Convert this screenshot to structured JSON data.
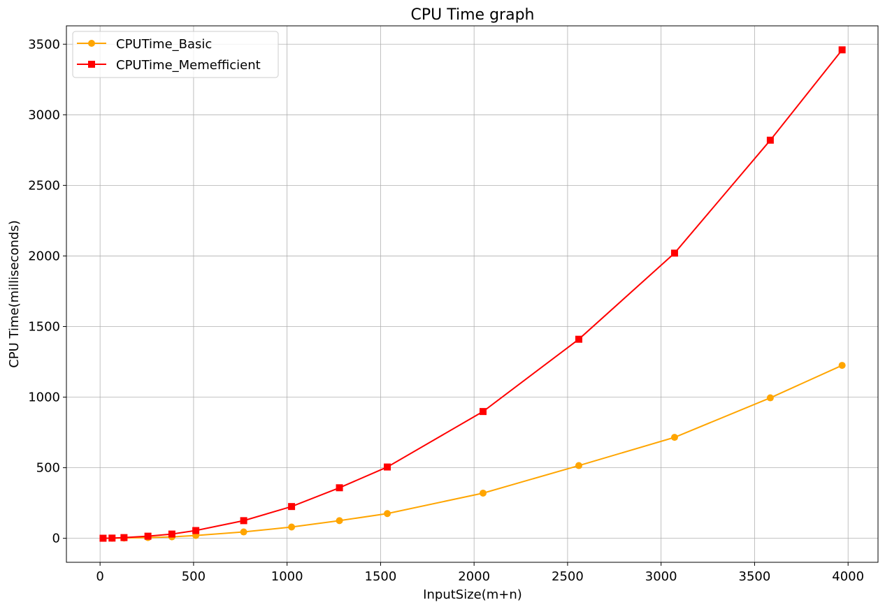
{
  "chart_data": {
    "type": "line",
    "title": "CPU Time graph",
    "xlabel": "InputSize(m+n)",
    "ylabel": "CPU Time(milliseconds)",
    "xlim": [
      -180,
      4160
    ],
    "ylim": [
      -170,
      3630
    ],
    "xticks": [
      0,
      500,
      1000,
      1500,
      2000,
      2500,
      3000,
      3500,
      4000
    ],
    "yticks": [
      0,
      500,
      1000,
      1500,
      2000,
      2500,
      3000,
      3500
    ],
    "grid": true,
    "legend_position": "top-left",
    "series": [
      {
        "name": "CPUTime_Basic",
        "color": "#ffa500",
        "marker": "circle",
        "x": [
          16,
          64,
          128,
          256,
          384,
          512,
          768,
          1024,
          1280,
          1536,
          2048,
          2560,
          3072,
          3584,
          3968
        ],
        "y": [
          0.2,
          0.6,
          2,
          5,
          10,
          20,
          45,
          80,
          125,
          175,
          320,
          515,
          715,
          995,
          1225
        ]
      },
      {
        "name": "CPUTime_Memefficient",
        "color": "#ff0000",
        "marker": "square",
        "x": [
          16,
          64,
          128,
          256,
          384,
          512,
          768,
          1024,
          1280,
          1536,
          2048,
          2560,
          3072,
          3584,
          3968
        ],
        "y": [
          0.5,
          1.5,
          5,
          15,
          30,
          55,
          125,
          225,
          358,
          505,
          898,
          1410,
          2020,
          2820,
          3460
        ]
      }
    ]
  }
}
